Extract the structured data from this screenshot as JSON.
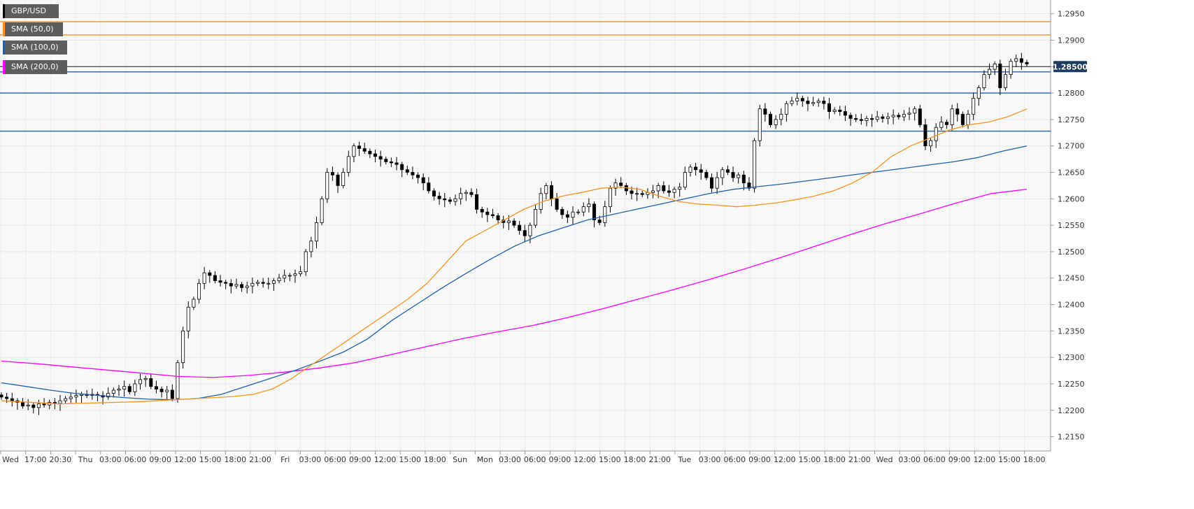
{
  "legend": [
    {
      "label": "GBP/USD",
      "color": "#000000"
    },
    {
      "label": "SMA (50,0)",
      "color": "#f7931e"
    },
    {
      "label": "SMA (100,0)",
      "color": "#1f5fae"
    },
    {
      "label": "SMA (200,0)",
      "color": "#ff00ff"
    }
  ],
  "price_tag": {
    "value": "1.28500",
    "bg": "#1e3a5f"
  },
  "chart_data": {
    "type": "candlestick",
    "symbol": "GBP/USD",
    "y_ticks": [
      "1.2950",
      "1.2900",
      "1.2850",
      "1.2800",
      "1.2750",
      "1.2700",
      "1.2650",
      "1.2600",
      "1.2550",
      "1.2500",
      "1.2450",
      "1.2400",
      "1.2350",
      "1.2300",
      "1.2250",
      "1.2200",
      "1.2150"
    ],
    "ylim": [
      1.2123,
      1.2976
    ],
    "x_ticks": [
      "Wed",
      "17:00",
      "20:30",
      "Thu",
      "03:00",
      "06:00",
      "09:00",
      "12:00",
      "15:00",
      "18:00",
      "21:00",
      "Fri",
      "03:00",
      "06:00",
      "09:00",
      "12:00",
      "15:00",
      "18:00",
      "Sun",
      "Mon",
      "03:00",
      "06:00",
      "09:00",
      "12:00",
      "15:00",
      "18:00",
      "21:00",
      "Tue",
      "03:00",
      "06:00",
      "09:00",
      "12:00",
      "15:00",
      "18:00",
      "21:00",
      "Wed",
      "03:00",
      "06:00",
      "09:00",
      "12:00",
      "15:00",
      "18:00"
    ],
    "grid": true,
    "horizontal_levels": [
      {
        "price": 1.2935,
        "color": "#f7931e"
      },
      {
        "price": 1.291,
        "color": "#f7931e"
      },
      {
        "price": 1.285,
        "color": "#555555"
      },
      {
        "price": 1.284,
        "color": "#1f5fae"
      },
      {
        "price": 1.28,
        "color": "#1f5fae"
      },
      {
        "price": 1.2728,
        "color": "#1f5fae"
      }
    ],
    "closes": [
      1.2225,
      1.2222,
      1.2218,
      1.2215,
      1.2208,
      1.221,
      1.2205,
      1.2212,
      1.221,
      1.2215,
      1.2213,
      1.2218,
      1.2222,
      1.2225,
      1.2228,
      1.223,
      1.2228,
      1.223,
      1.2228,
      1.2225,
      1.2232,
      1.2238,
      1.224,
      1.2245,
      1.2235,
      1.225,
      1.2258,
      1.226,
      1.2245,
      1.224,
      1.2235,
      1.2238,
      1.2222,
      1.229,
      1.235,
      1.2395,
      1.241,
      1.244,
      1.246,
      1.2455,
      1.2445,
      1.2442,
      1.244,
      1.2435,
      1.2438,
      1.2432,
      1.2435,
      1.244,
      1.2442,
      1.244,
      1.244,
      1.2445,
      1.245,
      1.2455,
      1.2455,
      1.2458,
      1.2462,
      1.25,
      1.252,
      1.2555,
      1.26,
      1.265,
      1.2645,
      1.2625,
      1.265,
      1.268,
      1.27,
      1.2695,
      1.269,
      1.2685,
      1.268,
      1.2675,
      1.267,
      1.2668,
      1.2665,
      1.2655,
      1.265,
      1.2645,
      1.264,
      1.263,
      1.2615,
      1.2605,
      1.26,
      1.2598,
      1.2595,
      1.26,
      1.261,
      1.2612,
      1.2608,
      1.258,
      1.2575,
      1.257,
      1.2568,
      1.256,
      1.2555,
      1.2558,
      1.255,
      1.254,
      1.253,
      1.255,
      1.258,
      1.261,
      1.2625,
      1.26,
      1.258,
      1.257,
      1.2565,
      1.2575,
      1.2575,
      1.2585,
      1.259,
      1.256,
      1.2555,
      1.2585,
      1.262,
      1.263,
      1.2625,
      1.2615,
      1.261,
      1.261,
      1.2608,
      1.2612,
      1.2615,
      1.2625,
      1.2615,
      1.2612,
      1.2618,
      1.2622,
      1.265,
      1.266,
      1.2655,
      1.265,
      1.264,
      1.262,
      1.264,
      1.2655,
      1.265,
      1.264,
      1.2645,
      1.263,
      1.262,
      1.271,
      1.277,
      1.276,
      1.274,
      1.275,
      1.276,
      1.278,
      1.2785,
      1.279,
      1.2785,
      1.278,
      1.2782,
      1.2785,
      1.278,
      1.2765,
      1.2768,
      1.2765,
      1.2758,
      1.2752,
      1.275,
      1.2748,
      1.2752,
      1.275,
      1.2755,
      1.2752,
      1.2755,
      1.2758,
      1.2755,
      1.276,
      1.2762,
      1.277,
      1.274,
      1.27,
      1.271,
      1.2735,
      1.2745,
      1.274,
      1.277,
      1.276,
      1.274,
      1.276,
      1.279,
      1.281,
      1.2835,
      1.2845,
      1.2855,
      1.281,
      1.2835,
      1.286,
      1.2865,
      1.2858,
      1.2855
    ],
    "sma_50": [
      1.2218,
      1.2216,
      1.2214,
      1.2212,
      1.2213,
      1.2214,
      1.2215,
      1.2216,
      1.2218,
      1.222,
      1.2222,
      1.2224,
      1.2226,
      1.223,
      1.224,
      1.226,
      1.2285,
      1.231,
      1.2335,
      1.236,
      1.2385,
      1.241,
      1.244,
      1.248,
      1.252,
      1.254,
      1.256,
      1.258,
      1.2595,
      1.2605,
      1.2612,
      1.262,
      1.2622,
      1.2618,
      1.2605,
      1.2595,
      1.259,
      1.2588,
      1.2585,
      1.2588,
      1.2592,
      1.2598,
      1.2605,
      1.2615,
      1.263,
      1.265,
      1.268,
      1.27,
      1.2715,
      1.273,
      1.274,
      1.2745,
      1.2755,
      1.277
    ],
    "sma_100": [
      1.2252,
      1.2245,
      1.2238,
      1.2232,
      1.2228,
      1.2224,
      1.2221,
      1.222,
      1.2222,
      1.223,
      1.2245,
      1.226,
      1.2275,
      1.2292,
      1.231,
      1.2335,
      1.237,
      1.24,
      1.243,
      1.2458,
      1.2485,
      1.251,
      1.253,
      1.2545,
      1.256,
      1.257,
      1.258,
      1.259,
      1.26,
      1.261,
      1.2618,
      1.2623,
      1.2628,
      1.2634,
      1.264,
      1.2646,
      1.2652,
      1.2658,
      1.2664,
      1.267,
      1.2678,
      1.269,
      1.27
    ],
    "sma_200": [
      1.2293,
      1.2288,
      1.2282,
      1.2276,
      1.227,
      1.2264,
      1.2262,
      1.2266,
      1.2272,
      1.228,
      1.229,
      1.2305,
      1.232,
      1.2335,
      1.2348,
      1.236,
      1.2375,
      1.2392,
      1.241,
      1.2428,
      1.2447,
      1.2467,
      1.2488,
      1.251,
      1.2532,
      1.2553,
      1.2572,
      1.2592,
      1.261,
      1.2618
    ]
  }
}
